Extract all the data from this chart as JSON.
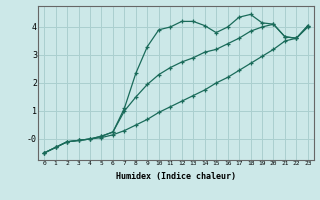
{
  "xlabel": "Humidex (Indice chaleur)",
  "bg_color": "#cce8e8",
  "line_color": "#1a6b5a",
  "grid_color": "#aacfcf",
  "xlim": [
    -0.5,
    23.5
  ],
  "ylim": [
    -0.75,
    4.75
  ],
  "yticks": [
    0,
    1,
    2,
    3,
    4
  ],
  "ytick_labels": [
    "-0",
    "1",
    "2",
    "3",
    "4"
  ],
  "xticks": [
    0,
    1,
    2,
    3,
    4,
    5,
    6,
    7,
    8,
    9,
    10,
    11,
    12,
    13,
    14,
    15,
    16,
    17,
    18,
    19,
    20,
    21,
    22,
    23
  ],
  "line1_x": [
    0,
    1,
    2,
    3,
    4,
    5,
    6,
    7,
    8,
    9,
    10,
    11,
    12,
    13,
    14,
    15,
    16,
    17,
    18,
    19,
    20,
    21,
    22,
    23
  ],
  "line1_y": [
    -0.5,
    -0.3,
    -0.1,
    -0.05,
    0.0,
    0.05,
    0.15,
    0.3,
    0.5,
    0.7,
    0.95,
    1.15,
    1.35,
    1.55,
    1.75,
    2.0,
    2.2,
    2.45,
    2.7,
    2.95,
    3.2,
    3.5,
    3.6,
    4.0
  ],
  "line2_x": [
    0,
    1,
    2,
    3,
    4,
    5,
    6,
    7,
    8,
    9,
    10,
    11,
    12,
    13,
    14,
    15,
    16,
    17,
    18,
    19,
    20,
    21,
    22,
    23
  ],
  "line2_y": [
    -0.5,
    -0.3,
    -0.1,
    -0.05,
    0.0,
    0.1,
    0.25,
    1.1,
    2.35,
    3.3,
    3.9,
    4.0,
    4.2,
    4.2,
    4.05,
    3.8,
    4.0,
    4.35,
    4.45,
    4.15,
    4.1,
    3.65,
    3.6,
    4.05
  ],
  "line3_x": [
    0,
    1,
    2,
    3,
    4,
    5,
    6,
    7,
    8,
    9,
    10,
    11,
    12,
    13,
    14,
    15,
    16,
    17,
    18,
    19,
    20,
    21,
    22,
    23
  ],
  "line3_y": [
    -0.5,
    -0.3,
    -0.1,
    -0.05,
    0.0,
    0.1,
    0.25,
    1.0,
    1.5,
    1.95,
    2.3,
    2.55,
    2.75,
    2.9,
    3.1,
    3.2,
    3.4,
    3.6,
    3.85,
    4.0,
    4.1,
    3.65,
    3.6,
    4.05
  ]
}
